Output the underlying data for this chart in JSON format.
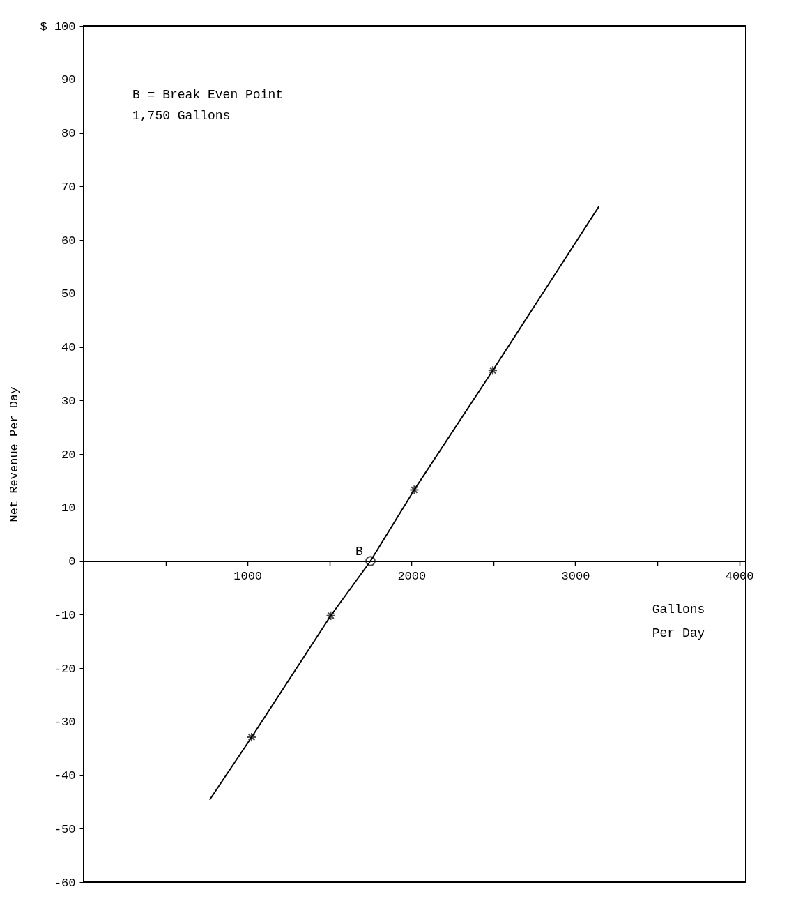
{
  "chart_data": {
    "type": "line",
    "xlabel": "Gallons Per Day",
    "ylabel": "Net Revenue Per Day",
    "xlim": [
      0,
      4040
    ],
    "ylim": [
      -60,
      100
    ],
    "xticks": [
      {
        "value": 500,
        "label": null
      },
      1000,
      {
        "value": 1500,
        "label": null
      },
      2000,
      {
        "value": 2500,
        "label": null
      },
      3000,
      {
        "value": 3500,
        "label": null
      },
      4000
    ],
    "yticks": [
      -60,
      -50,
      -40,
      -30,
      -20,
      -10,
      0,
      10,
      20,
      30,
      40,
      50,
      60,
      70,
      80,
      90,
      {
        "value": 100,
        "label": "$ 100"
      }
    ],
    "grid": false,
    "series": [
      {
        "color": "#000000",
        "marker": "none",
        "line_style": "solid",
        "x": [
          769,
          1025,
          1508,
          1750,
          2017,
          2496,
          3143
        ],
        "values": [
          -44.6,
          -32.9,
          -10.2,
          0,
          13.3,
          35.6,
          66.2
        ]
      },
      {
        "type": "scatter",
        "color": "#000000",
        "marker": "cross",
        "x": [
          1025,
          1508,
          2017,
          2496
        ],
        "values": [
          -32.9,
          -10.2,
          13.3,
          35.6
        ]
      },
      {
        "type": "scatter",
        "color": "#000000",
        "marker": "circle",
        "x": [
          1750
        ],
        "values": [
          0
        ]
      }
    ],
    "annotations": [
      "B = Break Even Point\n    1,750 Gallons",
      {
        "text": "B",
        "x": 1750,
        "y": 0
      }
    ]
  }
}
